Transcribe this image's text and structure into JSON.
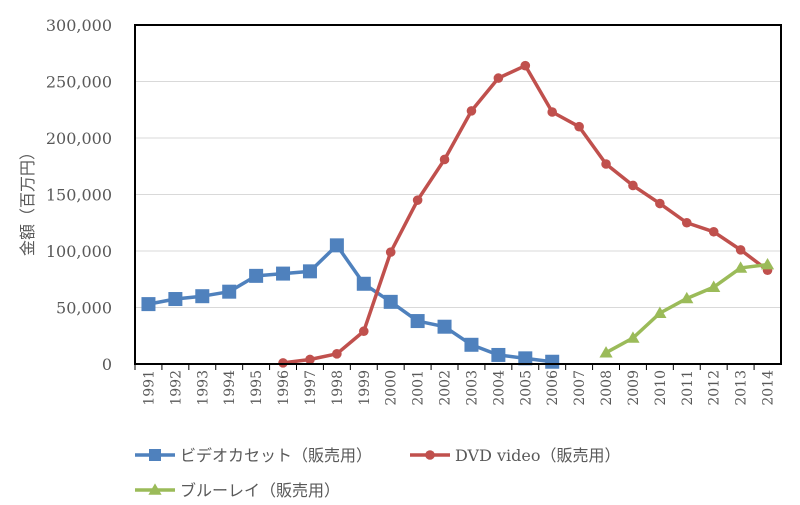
{
  "chart_data": {
    "type": "line",
    "title": "",
    "xlabel": "",
    "ylabel": "金額（百万円）",
    "ylim": [
      0,
      300000
    ],
    "yticks": [
      0,
      50000,
      100000,
      150000,
      200000,
      250000,
      300000
    ],
    "ytick_labels": [
      "0",
      "50,000",
      "100,000",
      "150,000",
      "200,000",
      "250,000",
      "300,000"
    ],
    "grid": true,
    "legend_position": "bottom",
    "categories": [
      "1991",
      "1992",
      "1993",
      "1994",
      "1995",
      "1996",
      "1997",
      "1998",
      "1999",
      "2000",
      "2001",
      "2002",
      "2003",
      "2004",
      "2005",
      "2006",
      "2007",
      "2008",
      "2009",
      "2010",
      "2011",
      "2012",
      "2013",
      "2014"
    ],
    "series": [
      {
        "name": "ビデオカセット（販売用）",
        "color": "#4f81bd",
        "marker": "square",
        "values": [
          53000,
          57500,
          60000,
          64000,
          78000,
          80000,
          82000,
          105000,
          71000,
          55000,
          38000,
          33000,
          17000,
          8000,
          5000,
          2000,
          null,
          null,
          null,
          null,
          null,
          null,
          null,
          null
        ]
      },
      {
        "name": "DVD video（販売用）",
        "color": "#c0504d",
        "marker": "circle",
        "values": [
          null,
          null,
          null,
          null,
          null,
          1000,
          4000,
          9000,
          29000,
          99000,
          145000,
          181000,
          224000,
          253000,
          264000,
          223000,
          210000,
          177000,
          158000,
          142000,
          125000,
          117000,
          101000,
          83000
        ]
      },
      {
        "name": "ブルーレイ（販売用）",
        "color": "#9bbb59",
        "marker": "triangle",
        "values": [
          null,
          null,
          null,
          null,
          null,
          null,
          null,
          null,
          null,
          null,
          null,
          null,
          null,
          null,
          null,
          null,
          null,
          10000,
          23000,
          45000,
          58000,
          68000,
          85000,
          88000
        ]
      }
    ]
  }
}
